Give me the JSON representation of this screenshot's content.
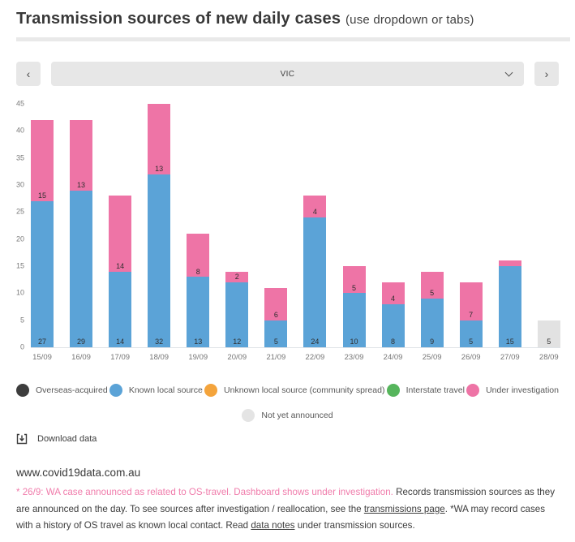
{
  "header": {
    "title": "Transmission sources of new daily cases",
    "subtitle": "(use dropdown or tabs)"
  },
  "nav": {
    "prev_label": "‹",
    "next_label": "›",
    "selected_region": "VIC"
  },
  "chart_data": {
    "type": "bar",
    "stacked": true,
    "title": "Transmission sources of new daily cases",
    "xlabel": "",
    "ylabel": "",
    "ylim": [
      0,
      45
    ],
    "y_ticks": [
      0,
      5,
      10,
      15,
      20,
      25,
      30,
      35,
      40,
      45
    ],
    "grid": false,
    "label_min": 2,
    "categories": [
      "15/09",
      "16/09",
      "17/09",
      "18/09",
      "19/09",
      "20/09",
      "21/09",
      "22/09",
      "23/09",
      "24/09",
      "25/09",
      "26/09",
      "27/09",
      "28/09"
    ],
    "series": [
      {
        "name": "Known local source",
        "color": "#5ba3d7",
        "values": [
          27,
          29,
          14,
          32,
          13,
          12,
          5,
          24,
          10,
          8,
          9,
          5,
          15,
          0
        ]
      },
      {
        "name": "Under investigation",
        "color": "#ee74a6",
        "values": [
          15,
          13,
          14,
          13,
          8,
          2,
          6,
          4,
          5,
          4,
          5,
          7,
          1,
          0
        ]
      },
      {
        "name": "Not yet announced",
        "color": "#e2e2e2",
        "values": [
          0,
          0,
          0,
          0,
          0,
          0,
          0,
          0,
          0,
          0,
          0,
          0,
          0,
          5
        ]
      }
    ],
    "legend": [
      {
        "label": "Overseas-acquired",
        "color": "#3d3d3d"
      },
      {
        "label": "Known local source",
        "color": "#5ba3d7"
      },
      {
        "label": "Unknown local source (community spread)",
        "color": "#f4a43c"
      },
      {
        "label": "Interstate travel",
        "color": "#56b55c"
      },
      {
        "label": "Under investigation",
        "color": "#ee74a6"
      }
    ],
    "legend_row2": [
      {
        "label": "Not yet announced",
        "color": "#e4e4e4"
      }
    ],
    "legend_position": "bottom"
  },
  "download": {
    "label": "Download data"
  },
  "footer": {
    "url": "www.covid19data.com.au",
    "note_highlight": "* 26/9: WA case announced as related to OS-travel. Dashboard shows under investigation.",
    "note_part1": " Records transmission sources as they are announced on the day. To see sources after investigation / reallocation, see the ",
    "link1": "transmissions page",
    "note_part2": ". *WA may record cases with a history of OS travel as known local contact. Read ",
    "link2": "data notes",
    "note_part3": " under transmission sources."
  }
}
